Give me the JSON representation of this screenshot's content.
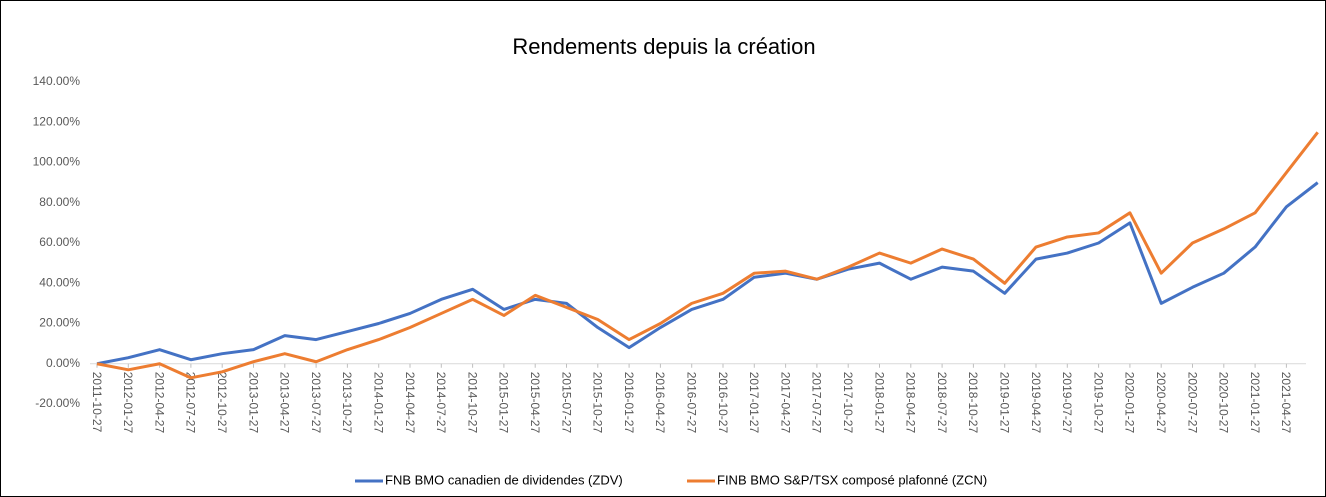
{
  "chart_data": {
    "type": "line",
    "title": "Rendements depuis la création",
    "categories": [
      "2011-10-27",
      "2012-01-27",
      "2012-04-27",
      "2012-07-27",
      "2012-10-27",
      "2013-01-27",
      "2013-04-27",
      "2013-07-27",
      "2013-10-27",
      "2014-01-27",
      "2014-04-27",
      "2014-07-27",
      "2014-10-27",
      "2015-01-27",
      "2015-04-27",
      "2015-07-27",
      "2015-10-27",
      "2016-01-27",
      "2016-04-27",
      "2016-07-27",
      "2016-10-27",
      "2017-01-27",
      "2017-04-27",
      "2017-07-27",
      "2017-10-27",
      "2018-01-27",
      "2018-04-27",
      "2018-07-27",
      "2018-10-27",
      "2019-01-27",
      "2019-04-27",
      "2019-07-27",
      "2019-10-27",
      "2020-01-27",
      "2020-04-27",
      "2020-07-27",
      "2020-10-27",
      "2021-01-27",
      "2021-04-27",
      null
    ],
    "series": [
      {
        "name": "FNB BMO canadien de dividendes (ZDV)",
        "color": "#4472c4",
        "values": [
          0,
          3,
          7,
          2,
          5,
          7,
          14,
          12,
          16,
          20,
          25,
          32,
          37,
          27,
          32,
          30,
          18,
          8,
          18,
          27,
          32,
          43,
          45,
          42,
          47,
          50,
          42,
          48,
          46,
          35,
          52,
          55,
          60,
          70,
          30,
          38,
          45,
          58,
          78,
          90
        ]
      },
      {
        "name": "FINB BMO S&P/TSX composé plafonné (ZCN)",
        "color": "#ed7d31",
        "values": [
          0,
          -3,
          0,
          -7,
          -4,
          1,
          5,
          1,
          7,
          12,
          18,
          25,
          32,
          24,
          34,
          28,
          22,
          12,
          20,
          30,
          35,
          45,
          46,
          42,
          48,
          55,
          50,
          57,
          52,
          40,
          58,
          63,
          65,
          75,
          45,
          60,
          67,
          75,
          95,
          115
        ]
      }
    ],
    "ylim": [
      -20,
      140
    ],
    "yticks": [
      {
        "value": -20,
        "label": "-20.00%"
      },
      {
        "value": 0,
        "label": "0.00%"
      },
      {
        "value": 20,
        "label": "20.00%"
      },
      {
        "value": 40,
        "label": "40.00%"
      },
      {
        "value": 60,
        "label": "60.00%"
      },
      {
        "value": 80,
        "label": "80.00%"
      },
      {
        "value": 100,
        "label": "100.00%"
      },
      {
        "value": 120,
        "label": "120.00%"
      },
      {
        "value": 140,
        "label": "140.00%"
      }
    ],
    "grid": false,
    "legend": "bottom"
  }
}
